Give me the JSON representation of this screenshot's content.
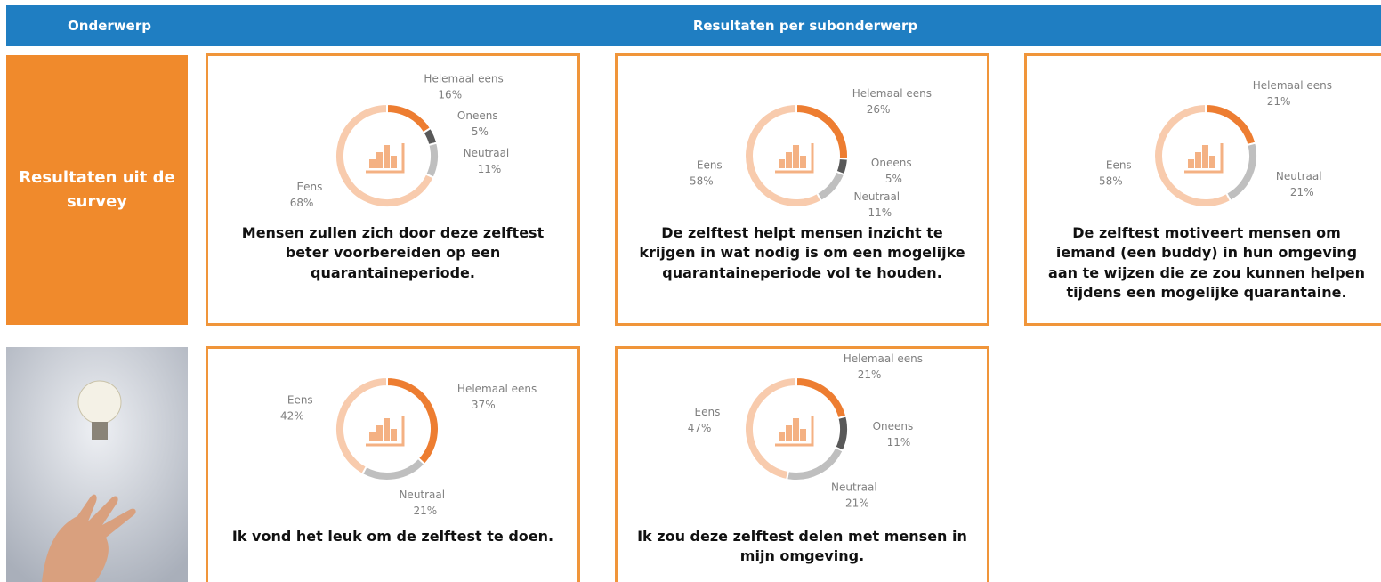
{
  "header": {
    "left": "Onderwerp",
    "right": "Resultaten per subonderwerp"
  },
  "side": {
    "label": "Resultaten uit de survey"
  },
  "chart_data": [
    {
      "type": "pie",
      "donut": true,
      "title": "Mensen zullen zich door deze zelftest beter voorbereiden op een quarantaineperiode.",
      "categories": [
        "Helemaal eens",
        "Oneens",
        "Neutraal",
        "Eens"
      ],
      "values": [
        16,
        5,
        11,
        68
      ],
      "value_labels": [
        "16%",
        "5%",
        "11%",
        "68%"
      ],
      "colors": [
        "#ed7d31",
        "#595959",
        "#bfbfbf",
        "#f8cbad"
      ]
    },
    {
      "type": "pie",
      "donut": true,
      "title": "De zelftest helpt mensen inzicht te krijgen in wat nodig is om een mogelijke quarantaineperiode vol te houden.",
      "categories": [
        "Helemaal eens",
        "Oneens",
        "Neutraal",
        "Eens"
      ],
      "values": [
        26,
        5,
        11,
        58
      ],
      "value_labels": [
        "26%",
        "5%",
        "11%",
        "58%"
      ],
      "colors": [
        "#ed7d31",
        "#595959",
        "#bfbfbf",
        "#f8cbad"
      ]
    },
    {
      "type": "pie",
      "donut": true,
      "title": "De zelftest motiveert mensen om iemand (een buddy) in hun omgeving aan te wijzen die ze zou kunnen helpen tijdens een mogelijke quarantaine.",
      "categories": [
        "Helemaal eens",
        "Neutraal",
        "Eens"
      ],
      "values": [
        21,
        21,
        58
      ],
      "value_labels": [
        "21%",
        "21%",
        "58%"
      ],
      "colors": [
        "#ed7d31",
        "#bfbfbf",
        "#f8cbad"
      ]
    },
    {
      "type": "pie",
      "donut": true,
      "title": "Ik vond het leuk om de zelftest te doen.",
      "categories": [
        "Helemaal eens",
        "Neutraal",
        "Eens"
      ],
      "values": [
        37,
        21,
        42
      ],
      "value_labels": [
        "37%",
        "21%",
        "42%"
      ],
      "colors": [
        "#ed7d31",
        "#bfbfbf",
        "#f8cbad"
      ]
    },
    {
      "type": "pie",
      "donut": true,
      "title": "Ik zou deze zelftest delen met mensen in mijn omgeving.",
      "categories": [
        "Helemaal eens",
        "Oneens",
        "Neutraal",
        "Eens"
      ],
      "values": [
        21,
        11,
        21,
        47
      ],
      "value_labels": [
        "21%",
        "11%",
        "21%",
        "47%"
      ],
      "colors": [
        "#ed7d31",
        "#595959",
        "#bfbfbf",
        "#f8cbad"
      ]
    }
  ]
}
